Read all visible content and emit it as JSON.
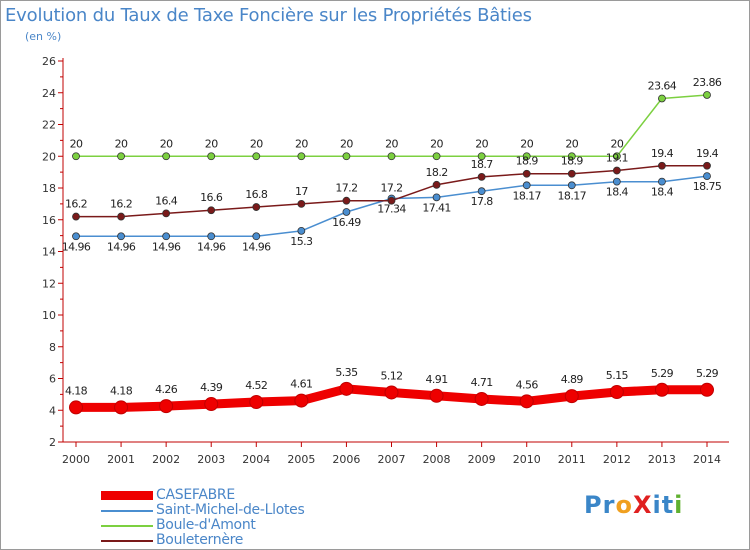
{
  "title": "Evolution du Taux de Taxe Foncière sur les Propriétés Bâties",
  "subtitle": "(en %)",
  "brand": {
    "text": "ProXiti",
    "letters": [
      "P",
      "r",
      "o",
      "X",
      "i",
      "t",
      "i"
    ],
    "colors": [
      "#3a86c8",
      "#3a86c8",
      "#f0a020",
      "#e02020",
      "#3a86c8",
      "#3a86c8",
      "#60b030"
    ]
  },
  "chart_data": {
    "type": "line",
    "title": "Evolution du Taux de Taxe Foncière sur les Propriétés Bâties",
    "ylabel": "(en %)",
    "xlabel": "",
    "x": [
      "2000",
      "2001",
      "2002",
      "2003",
      "2004",
      "2005",
      "2006",
      "2007",
      "2008",
      "2009",
      "2010",
      "2011",
      "2012",
      "2013",
      "2014"
    ],
    "ylim": [
      2,
      26
    ],
    "yticks": [
      2,
      4,
      6,
      8,
      10,
      12,
      14,
      16,
      18,
      20,
      22,
      24,
      26
    ],
    "grid": false,
    "legend_position": "bottom-left",
    "series": [
      {
        "name": "CASEFABRE",
        "color": "#ee0000",
        "values": [
          4.18,
          4.18,
          4.26,
          4.39,
          4.52,
          4.61,
          5.35,
          5.12,
          4.91,
          4.71,
          4.56,
          4.89,
          5.15,
          5.29,
          5.29
        ],
        "labels": [
          "4.18",
          "4.18",
          "4.26",
          "4.39",
          "4.52",
          "4.61",
          "5.35",
          "5.12",
          "4.91",
          "4.71",
          "4.56",
          "4.89",
          "5.15",
          "5.29",
          "5.29"
        ]
      },
      {
        "name": "Saint-Michel-de-Llotes",
        "color": "#4a8ed0",
        "values": [
          14.96,
          14.96,
          14.96,
          14.96,
          14.96,
          15.3,
          16.49,
          17.34,
          17.41,
          17.8,
          18.17,
          18.17,
          18.4,
          18.4,
          18.75
        ],
        "labels": [
          "14.96",
          "14.96",
          "14.96",
          "14.96",
          "14.96",
          "15.3",
          "16.49",
          "17.34",
          "17.41",
          "17.8",
          "18.17",
          "18.17",
          "18.4",
          "18.4",
          "18.75"
        ]
      },
      {
        "name": "Boule-d'Amont",
        "color": "#7cd040",
        "values": [
          20,
          20,
          20,
          20,
          20,
          20,
          20,
          20,
          20,
          20,
          20,
          20,
          20,
          23.64,
          23.86
        ],
        "labels": [
          "20",
          "20",
          "20",
          "20",
          "20",
          "20",
          "20",
          "20",
          "20",
          "20",
          "20",
          "20",
          "20",
          "23.64",
          "23.86"
        ]
      },
      {
        "name": "Bouleternère",
        "color": "#7a1a1a",
        "values": [
          16.2,
          16.2,
          16.4,
          16.6,
          16.8,
          17,
          17.2,
          17.2,
          18.2,
          18.7,
          18.9,
          18.9,
          19.1,
          19.4,
          19.4
        ],
        "labels": [
          "16.2",
          "16.2",
          "16.4",
          "16.6",
          "16.8",
          "17",
          "17.2",
          "17.2",
          "18.2",
          "18.7",
          "18.9",
          "18.9",
          "19.1",
          "19.4",
          "19.4"
        ]
      }
    ]
  }
}
